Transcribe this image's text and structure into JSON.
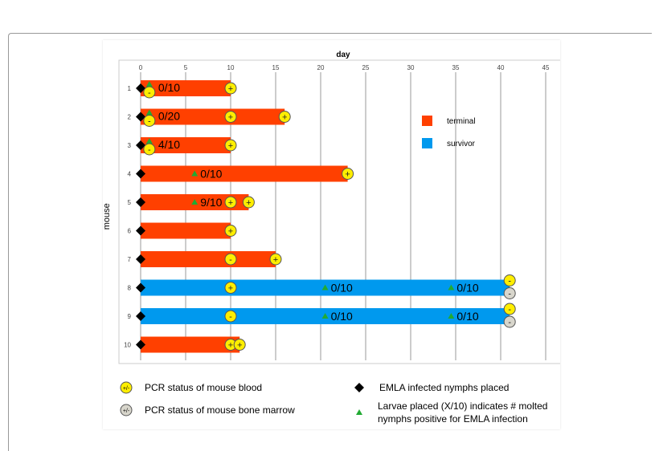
{
  "chart_data": {
    "type": "gantt",
    "xlabel": "day",
    "ylabel": "mouse",
    "xlim": [
      0,
      45
    ],
    "xticks": [
      0,
      5,
      10,
      15,
      20,
      25,
      30,
      35,
      40,
      45
    ],
    "grid": true,
    "categories": [
      "1",
      "2",
      "3",
      "4",
      "5",
      "6",
      "7",
      "8",
      "9",
      "10"
    ],
    "series": [
      {
        "name": "terminal",
        "color": "#ff4000"
      },
      {
        "name": "survivor",
        "color": "#0099ee"
      }
    ],
    "bars": [
      {
        "mouse": "1",
        "start": 0,
        "end": 10,
        "outcome": "terminal"
      },
      {
        "mouse": "2",
        "start": 0,
        "end": 16,
        "outcome": "terminal"
      },
      {
        "mouse": "3",
        "start": 0,
        "end": 10,
        "outcome": "terminal"
      },
      {
        "mouse": "4",
        "start": 0,
        "end": 23,
        "outcome": "terminal"
      },
      {
        "mouse": "5",
        "start": 0,
        "end": 12,
        "outcome": "terminal"
      },
      {
        "mouse": "6",
        "start": 0,
        "end": 10,
        "outcome": "terminal"
      },
      {
        "mouse": "7",
        "start": 0,
        "end": 15,
        "outcome": "terminal"
      },
      {
        "mouse": "8",
        "start": 0,
        "end": 41,
        "outcome": "survivor"
      },
      {
        "mouse": "9",
        "start": 0,
        "end": 41,
        "outcome": "survivor"
      },
      {
        "mouse": "10",
        "start": 0,
        "end": 11,
        "outcome": "terminal"
      }
    ],
    "pcr_blood": [
      {
        "mouse": "1",
        "day": 0.7,
        "result": "-"
      },
      {
        "mouse": "1",
        "day": 10,
        "result": "+"
      },
      {
        "mouse": "2",
        "day": 0.7,
        "result": "-"
      },
      {
        "mouse": "2",
        "day": 10,
        "result": "+"
      },
      {
        "mouse": "2",
        "day": 16,
        "result": "+"
      },
      {
        "mouse": "3",
        "day": 0.7,
        "result": "-"
      },
      {
        "mouse": "3",
        "day": 10,
        "result": "+"
      },
      {
        "mouse": "4",
        "day": 23,
        "result": "+"
      },
      {
        "mouse": "5",
        "day": 10,
        "result": "+"
      },
      {
        "mouse": "5",
        "day": 12,
        "result": "+"
      },
      {
        "mouse": "6",
        "day": 10,
        "result": "+"
      },
      {
        "mouse": "7",
        "day": 10,
        "result": "-"
      },
      {
        "mouse": "7",
        "day": 15,
        "result": "+"
      },
      {
        "mouse": "8",
        "day": 10,
        "result": "+"
      },
      {
        "mouse": "8",
        "day": 41,
        "result": "-"
      },
      {
        "mouse": "9",
        "day": 10,
        "result": "-"
      },
      {
        "mouse": "9",
        "day": 41,
        "result": "-"
      },
      {
        "mouse": "10",
        "day": 10,
        "result": "+"
      },
      {
        "mouse": "10",
        "day": 11,
        "result": "+"
      }
    ],
    "pcr_marrow": [
      {
        "mouse": "8",
        "day": 41,
        "result": "-"
      },
      {
        "mouse": "9",
        "day": 41,
        "result": "-"
      }
    ],
    "larvae": [
      {
        "mouse": "1",
        "day": 0.7,
        "label": "0/10"
      },
      {
        "mouse": "2",
        "day": 0.7,
        "label": "0/20"
      },
      {
        "mouse": "3",
        "day": 0.7,
        "label": "4/10"
      },
      {
        "mouse": "4",
        "day": 6,
        "label": "0/10"
      },
      {
        "mouse": "5",
        "day": 6,
        "label": "9/10"
      },
      {
        "mouse": "8",
        "day": 20.5,
        "label": "0/10"
      },
      {
        "mouse": "8",
        "day": 34.5,
        "label": "0/10"
      },
      {
        "mouse": "9",
        "day": 20.5,
        "label": "0/10"
      },
      {
        "mouse": "9",
        "day": 34.5,
        "label": "0/10"
      }
    ],
    "nymphs_placed_day": 0,
    "legend": {
      "blood": "PCR status of mouse blood",
      "marrow": "PCR status of mouse bone marrow",
      "symbol_label": "+/-",
      "nymphs": "EMLA infected nymphs placed",
      "larvae_line1": "Larvae placed (X/10) indicates # molted",
      "larvae_line2": "nymphs positive for EMLA infection"
    },
    "colors": {
      "pcr_blood": "#ffee00",
      "pcr_marrow": "#d8d6cc",
      "larvae": "#22aa33",
      "nymph": "#000000"
    }
  }
}
